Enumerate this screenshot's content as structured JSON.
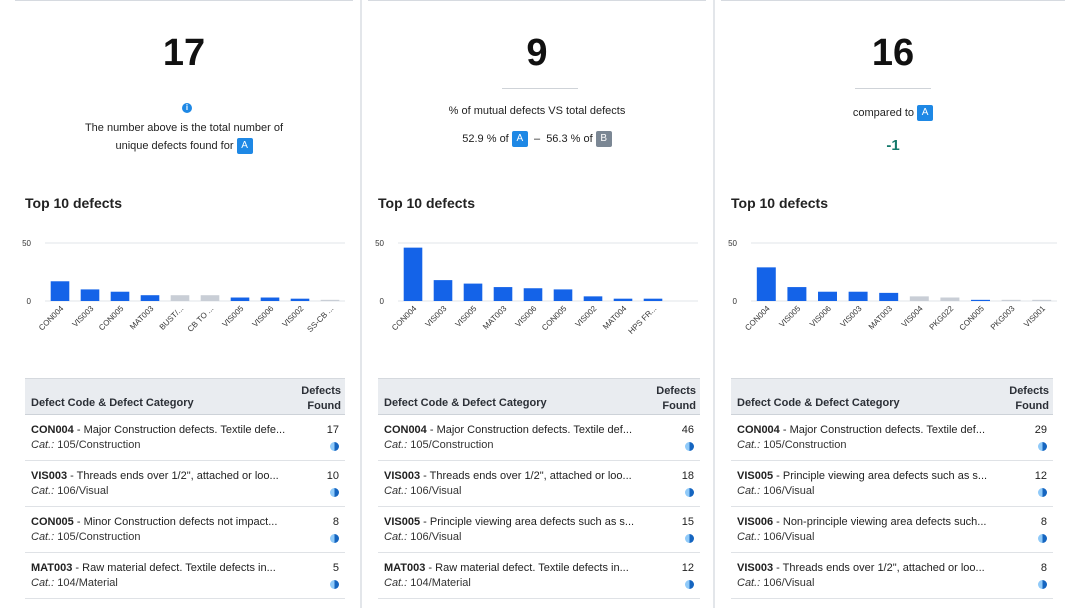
{
  "colors": {
    "accent": "#1e88e5",
    "bar_primary": "#1463e8",
    "bar_muted": "#c9ced6",
    "delta": "#14796b"
  },
  "panels": [
    {
      "big_number": "17",
      "info_icon": "info-icon",
      "caption_line1": "The number above is the total number of",
      "caption_line2": "unique defects found for",
      "badge_a": "A",
      "section_title": "Top 10 defects",
      "chart_data": {
        "type": "bar",
        "categories": [
          "CON004",
          "VIS003",
          "CON005",
          "MAT003",
          "BUST/...",
          "CB TO ...",
          "VIS005",
          "VIS006",
          "VIS002",
          "SS-CB ..."
        ],
        "values": [
          17,
          10,
          8,
          5,
          5,
          5,
          3,
          3,
          2,
          1
        ],
        "muted": [
          false,
          false,
          false,
          false,
          true,
          true,
          false,
          false,
          false,
          true
        ],
        "yticks": [
          "50",
          "0"
        ],
        "ylim": [
          0,
          50
        ]
      },
      "table": {
        "col_left": "Defect Code & Defect Category",
        "col_right_1": "Defects",
        "col_right_2": "Found",
        "cat_prefix": "Cat.:",
        "rows": [
          {
            "code": "CON004",
            "desc": " - Major Construction defects. Textile defe...",
            "cat": " 105/Construction",
            "count": "17"
          },
          {
            "code": "VIS003",
            "desc": " - Threads ends over 1/2\", attached or loo...",
            "cat": " 106/Visual",
            "count": "10"
          },
          {
            "code": "CON005",
            "desc": " - Minor Construction defects not impact...",
            "cat": " 105/Construction",
            "count": "8"
          },
          {
            "code": "MAT003",
            "desc": " - Raw material defect. Textile defects in...",
            "cat": " 104/Material",
            "count": "5"
          }
        ]
      }
    },
    {
      "big_number": "9",
      "caption": "% of mutual defects VS total defects",
      "pct_a": "52.9 % of",
      "badge_a": "A",
      "dash": "–",
      "pct_b": "56.3 % of",
      "badge_b": "B",
      "section_title": "Top 10 defects",
      "chart_data": {
        "type": "bar",
        "categories": [
          "CON004",
          "VIS003",
          "VIS005",
          "MAT003",
          "VIS006",
          "CON005",
          "VIS002",
          "MAT004",
          "HPS FR..."
        ],
        "values": [
          46,
          18,
          15,
          12,
          11,
          10,
          4,
          2,
          2
        ],
        "muted": [
          false,
          false,
          false,
          false,
          false,
          false,
          false,
          false,
          false
        ],
        "yticks": [
          "50",
          "0"
        ],
        "ylim": [
          0,
          50
        ]
      },
      "table": {
        "col_left": "Defect Code & Defect Category",
        "col_right_1": "Defects",
        "col_right_2": "Found",
        "cat_prefix": "Cat.:",
        "rows": [
          {
            "code": "CON004",
            "desc": " - Major Construction defects. Textile def...",
            "cat": " 105/Construction",
            "count": "46"
          },
          {
            "code": "VIS003",
            "desc": " - Threads ends over 1/2\", attached or loo...",
            "cat": " 106/Visual",
            "count": "18"
          },
          {
            "code": "VIS005",
            "desc": " - Principle viewing area defects such as s...",
            "cat": " 106/Visual",
            "count": "15"
          },
          {
            "code": "MAT003",
            "desc": " - Raw material defect. Textile defects in...",
            "cat": " 104/Material",
            "count": "12"
          }
        ]
      }
    },
    {
      "big_number": "16",
      "compared_to": "compared to",
      "badge_a": "A",
      "delta": "-1",
      "section_title": "Top 10 defects",
      "chart_data": {
        "type": "bar",
        "categories": [
          "CON004",
          "VIS005",
          "VIS006",
          "VIS003",
          "MAT003",
          "VIS004",
          "PKG022",
          "CON005",
          "PKG003",
          "VIS001"
        ],
        "values": [
          29,
          12,
          8,
          8,
          7,
          4,
          3,
          1,
          1,
          1
        ],
        "muted": [
          false,
          false,
          false,
          false,
          false,
          true,
          true,
          false,
          true,
          true
        ],
        "yticks": [
          "50",
          "0"
        ],
        "ylim": [
          0,
          50
        ]
      },
      "table": {
        "col_left": "Defect Code & Defect Category",
        "col_right_1": "Defects",
        "col_right_2": "Found",
        "cat_prefix": "Cat.:",
        "rows": [
          {
            "code": "CON004",
            "desc": " - Major Construction defects. Textile def...",
            "cat": " 105/Construction",
            "count": "29"
          },
          {
            "code": "VIS005",
            "desc": " - Principle viewing area defects such as s...",
            "cat": " 106/Visual",
            "count": "12"
          },
          {
            "code": "VIS006",
            "desc": " - Non-principle viewing area defects such...",
            "cat": " 106/Visual",
            "count": "8"
          },
          {
            "code": "VIS003",
            "desc": " - Threads ends over 1/2\", attached or loo...",
            "cat": " 106/Visual",
            "count": "8"
          }
        ]
      }
    }
  ]
}
